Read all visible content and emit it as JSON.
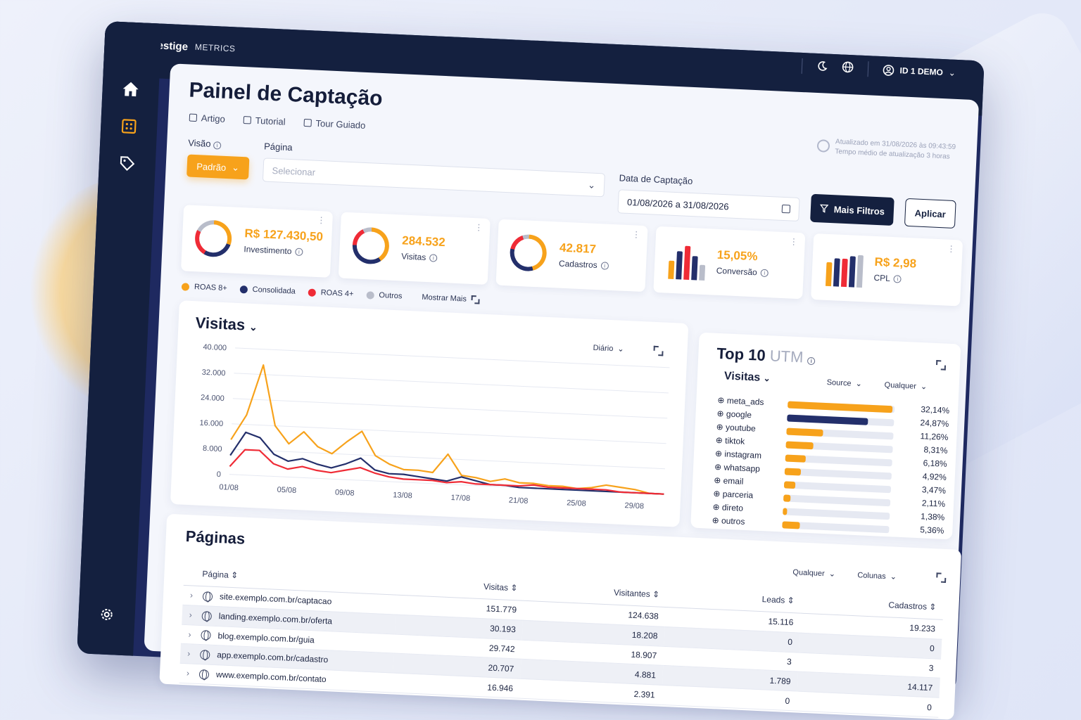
{
  "brand": {
    "name": "Vestige",
    "sub": "METRICS"
  },
  "page": {
    "title": "Painel de Captação",
    "links": [
      "Artigo",
      "Tutorial",
      "Tour Guiado"
    ]
  },
  "topbar": {
    "user": "ID 1 DEMO"
  },
  "updated": {
    "line1": "Atualizado em 31/08/2026 às 09:43:59",
    "line2": "Tempo médio de atualização 3 horas"
  },
  "filters": {
    "visao_label": "Visão",
    "visao_value": "Padrão",
    "pagina_label": "Página",
    "pagina_placeholder": "Selecionar",
    "data_label": "Data de Captação",
    "data_value": "01/08/2026 a 31/08/2026",
    "mais_filtros": "Mais Filtros",
    "aplicar": "Aplicar"
  },
  "kpis": [
    {
      "value": "R$ 127.430,50",
      "label": "Investimento"
    },
    {
      "value": "284.532",
      "label": "Visitas"
    },
    {
      "value": "42.817",
      "label": "Cadastros"
    },
    {
      "value": "15,05%",
      "label": "Conversão"
    },
    {
      "value": "R$ 2,98",
      "label": "CPL"
    }
  ],
  "legend": {
    "items": [
      {
        "label": "ROAS 8+",
        "color": "#f7a21b"
      },
      {
        "label": "Consolidada",
        "color": "#232f6b"
      },
      {
        "label": "ROAS 4+",
        "color": "#ef2b36"
      },
      {
        "label": "Outros",
        "color": "#b9bdca"
      }
    ],
    "more": "Mostrar Mais"
  },
  "visitas_card": {
    "title": "Visitas",
    "period": "Diário"
  },
  "chart_data": {
    "type": "line",
    "x": [
      "01/08",
      "02/08",
      "03/08",
      "04/08",
      "05/08",
      "06/08",
      "07/08",
      "08/08",
      "09/08",
      "10/08",
      "11/08",
      "12/08",
      "13/08",
      "14/08",
      "15/08",
      "16/08",
      "17/08",
      "18/08",
      "19/08",
      "20/08",
      "21/08",
      "22/08",
      "23/08",
      "24/08",
      "25/08",
      "26/08",
      "27/08",
      "28/08",
      "29/08",
      "30/08",
      "31/08"
    ],
    "xticks": [
      "01/08",
      "05/08",
      "09/08",
      "13/08",
      "17/08",
      "21/08",
      "25/08",
      "29/08"
    ],
    "yticks": [
      "40.000",
      "32.000",
      "24.000",
      "16.000",
      "8.000",
      "0"
    ],
    "ylim": [
      0,
      40000
    ],
    "series": [
      {
        "name": "ROAS 8+",
        "color": "#f7a21b",
        "values": [
          11000,
          19000,
          35000,
          16000,
          10500,
          14500,
          10000,
          8000,
          12000,
          15500,
          8000,
          5500,
          4000,
          4000,
          3500,
          9500,
          3000,
          2500,
          1500,
          2500,
          1500,
          1500,
          1000,
          1000,
          500,
          1000,
          2000,
          1500,
          1000,
          0,
          0
        ]
      },
      {
        "name": "Consolidada",
        "color": "#232f6b",
        "values": [
          6000,
          13500,
          12000,
          7000,
          5000,
          6000,
          4500,
          3500,
          5000,
          7000,
          3500,
          2500,
          2500,
          2000,
          1500,
          1000,
          2500,
          1500,
          500,
          500,
          0,
          0,
          0,
          0,
          0,
          0,
          0,
          0,
          0,
          0,
          -500
        ]
      },
      {
        "name": "ROAS 4+",
        "color": "#ef2b36",
        "values": [
          2500,
          8000,
          8000,
          4000,
          2500,
          3500,
          2500,
          2000,
          3000,
          4000,
          2500,
          1500,
          1000,
          1000,
          1000,
          500,
          1000,
          500,
          500,
          500,
          500,
          1000,
          500,
          500,
          500,
          500,
          500,
          0,
          0,
          0,
          0
        ]
      }
    ]
  },
  "utm_card": {
    "title": "Top 10",
    "title_suffix": "UTM",
    "metric": "Visitas",
    "source": "Source",
    "filter": "Qualquer",
    "rows": [
      {
        "name": "meta_ads",
        "pct": "32,14%",
        "value": 0.3214,
        "color": "#f7a21b"
      },
      {
        "name": "google",
        "pct": "24,87%",
        "value": 0.2487,
        "color": "#232f6b"
      },
      {
        "name": "youtube",
        "pct": "11,26%",
        "value": 0.1126,
        "color": "#f7a21b"
      },
      {
        "name": "tiktok",
        "pct": "8,31%",
        "value": 0.0831,
        "color": "#f7a21b"
      },
      {
        "name": "instagram",
        "pct": "6,18%",
        "value": 0.0618,
        "color": "#f7a21b"
      },
      {
        "name": "whatsapp",
        "pct": "4,92%",
        "value": 0.0492,
        "color": "#f7a21b"
      },
      {
        "name": "email",
        "pct": "3,47%",
        "value": 0.0347,
        "color": "#f7a21b"
      },
      {
        "name": "parceria",
        "pct": "2,11%",
        "value": 0.0211,
        "color": "#f7a21b"
      },
      {
        "name": "direto",
        "pct": "1,38%",
        "value": 0.0138,
        "color": "#f7a21b"
      },
      {
        "name": "outros",
        "pct": "5,36%",
        "value": 0.0536,
        "color": "#f7a21b"
      }
    ]
  },
  "paginas": {
    "title": "Páginas",
    "filter": "Qualquer",
    "columns_btn": "Colunas",
    "headers": [
      "Página",
      "Visitas",
      "Visitantes",
      "Leads",
      "Cadastros"
    ],
    "rows": [
      [
        "site.exemplo.com.br/captacao",
        "151.779",
        "124.638",
        "15.116",
        "19.233"
      ],
      [
        "landing.exemplo.com.br/oferta",
        "30.193",
        "18.208",
        "0",
        "0"
      ],
      [
        "blog.exemplo.com.br/guia",
        "29.742",
        "18.907",
        "3",
        "3"
      ],
      [
        "app.exemplo.com.br/cadastro",
        "20.707",
        "4.881",
        "1.789",
        "14.117"
      ],
      [
        "www.exemplo.com.br/contato",
        "16.946",
        "2.391",
        "0",
        "0"
      ]
    ]
  }
}
